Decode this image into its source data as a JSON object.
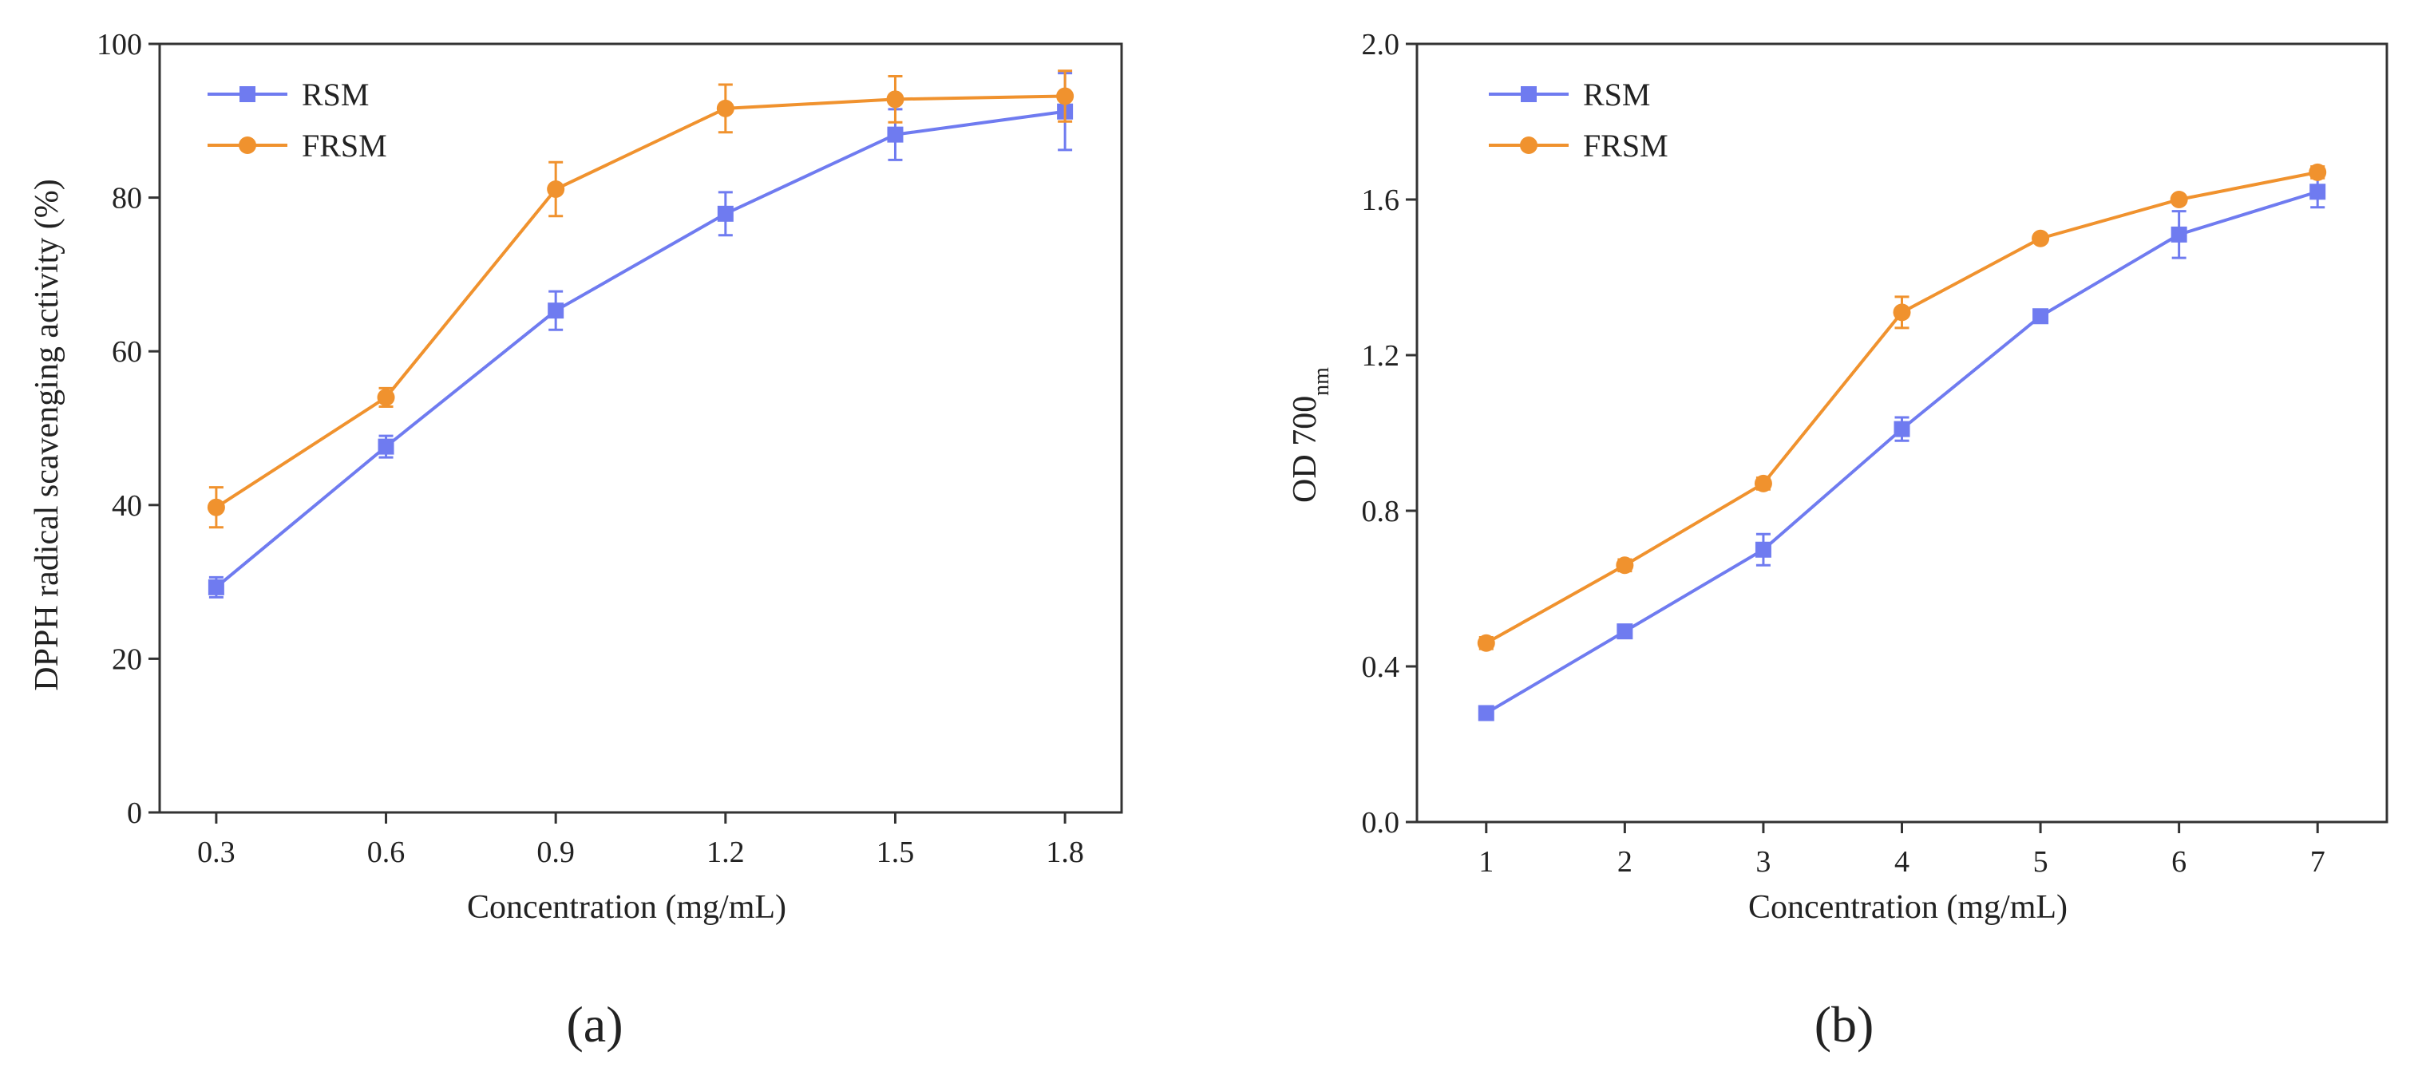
{
  "chart_data": [
    {
      "type": "line",
      "panel_label": "(a)",
      "title": "",
      "xlabel": "Concentration (mg/mL)",
      "ylabel": "DPPH radical scavenging activity (%)",
      "x": [
        0.3,
        0.6,
        0.9,
        1.2,
        1.5,
        1.8
      ],
      "x_tick_labels": [
        "0.3",
        "0.6",
        "0.9",
        "1.2",
        "1.5",
        "1.8"
      ],
      "xlim": [
        0.2,
        1.9
      ],
      "ylim": [
        0,
        100
      ],
      "y_ticks": [
        0,
        20,
        40,
        60,
        80,
        100
      ],
      "y_tick_labels": [
        "0",
        "20",
        "40",
        "60",
        "80",
        "100"
      ],
      "grid": false,
      "legend_position": "top-left",
      "series": [
        {
          "name": "RSM",
          "marker": "square",
          "color": "#6f7bf0",
          "values": [
            29.3,
            47.6,
            65.3,
            77.9,
            88.2,
            91.2
          ],
          "errors": [
            1.3,
            1.4,
            2.5,
            2.8,
            3.3,
            5.0
          ]
        },
        {
          "name": "FRSM",
          "marker": "circle",
          "color": "#f0922e",
          "values": [
            39.7,
            54.0,
            81.1,
            91.6,
            92.8,
            93.2
          ],
          "errors": [
            2.6,
            1.2,
            3.5,
            3.1,
            3.0,
            3.3
          ]
        }
      ]
    },
    {
      "type": "line",
      "panel_label": "(b)",
      "title": "",
      "xlabel": "Concentration (mg/mL)",
      "ylabel_main": "OD 700",
      "ylabel_sub": "nm",
      "x": [
        1,
        2,
        3,
        4,
        5,
        6,
        7
      ],
      "x_tick_labels": [
        "1",
        "2",
        "3",
        "4",
        "5",
        "6",
        "7"
      ],
      "xlim": [
        0.5,
        7.5
      ],
      "ylim": [
        0,
        2.0
      ],
      "y_ticks": [
        0,
        0.4,
        0.8,
        1.2,
        1.6,
        2.0
      ],
      "y_tick_labels": [
        "0.0",
        "0.4",
        "0.8",
        "1.2",
        "1.6",
        "2.0"
      ],
      "grid": false,
      "legend_position": "top-left",
      "series": [
        {
          "name": "RSM",
          "marker": "square",
          "color": "#6f7bf0",
          "values": [
            0.28,
            0.49,
            0.7,
            1.01,
            1.3,
            1.51,
            1.62
          ],
          "errors": [
            0.015,
            0.015,
            0.04,
            0.03,
            0.015,
            0.06,
            0.04
          ]
        },
        {
          "name": "FRSM",
          "marker": "circle",
          "color": "#f0922e",
          "values": [
            0.46,
            0.66,
            0.87,
            1.31,
            1.5,
            1.6,
            1.67
          ],
          "errors": [
            0.015,
            0.015,
            0.015,
            0.04,
            0.01,
            0.01,
            0.015
          ]
        }
      ]
    }
  ]
}
